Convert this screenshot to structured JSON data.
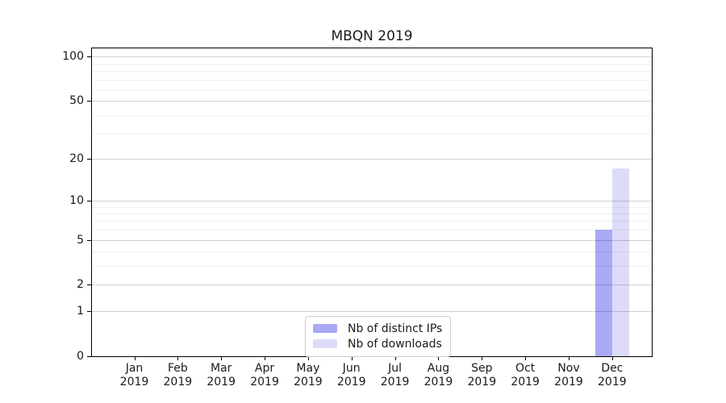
{
  "chart_data": {
    "type": "bar",
    "title": "MBQN 2019",
    "x_scale": "months",
    "y_scale": "log1p",
    "grid": "on",
    "legend_position": "bottom-center-inside",
    "categories": [
      {
        "month": "Jan",
        "year": "2019"
      },
      {
        "month": "Feb",
        "year": "2019"
      },
      {
        "month": "Mar",
        "year": "2019"
      },
      {
        "month": "Apr",
        "year": "2019"
      },
      {
        "month": "May",
        "year": "2019"
      },
      {
        "month": "Jun",
        "year": "2019"
      },
      {
        "month": "Jul",
        "year": "2019"
      },
      {
        "month": "Aug",
        "year": "2019"
      },
      {
        "month": "Sep",
        "year": "2019"
      },
      {
        "month": "Oct",
        "year": "2019"
      },
      {
        "month": "Nov",
        "year": "2019"
      },
      {
        "month": "Dec",
        "year": "2019"
      }
    ],
    "series": [
      {
        "name": "Nb of distinct IPs",
        "color": "#a9a9f5",
        "values": [
          0,
          0,
          0,
          0,
          0,
          0,
          0,
          0,
          0,
          0,
          0,
          6
        ]
      },
      {
        "name": "Nb of downloads",
        "color": "#dcdcf9",
        "values": [
          0,
          0,
          0,
          0,
          0,
          0,
          0,
          0,
          0,
          0,
          0,
          17
        ]
      }
    ],
    "y_major_ticks": [
      100,
      50,
      20,
      10,
      5,
      2,
      1,
      0
    ],
    "y_minor_ticks": [
      90,
      80,
      70,
      60,
      40,
      30,
      9,
      8,
      7,
      6,
      4,
      3
    ],
    "ylim": [
      0,
      113
    ],
    "axis_color": "#000000",
    "grid_major_color": "#d1d1d1",
    "grid_minor_color": "#efefef"
  }
}
